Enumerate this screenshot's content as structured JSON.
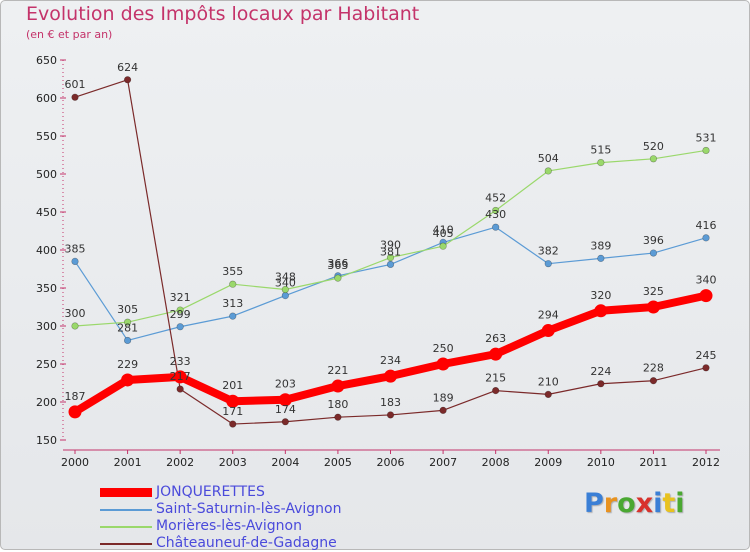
{
  "title": "Evolution des Impôts locaux par Habitant",
  "subtitle": "(en € et par an)",
  "brand": {
    "letters": [
      "P",
      "r",
      "o",
      "x",
      "i",
      "t",
      "i"
    ],
    "colors": [
      "#3a7fd6",
      "#e8921f",
      "#4aa832",
      "#d8322c",
      "#3a7fd6",
      "#e8c21f",
      "#4aa832"
    ]
  },
  "chart_data": {
    "type": "line",
    "title": "Evolution des Impôts locaux par Habitant",
    "subtitle": "(en € et par an)",
    "x": [
      "2000",
      "2001",
      "2002",
      "2003",
      "2004",
      "2005",
      "2006",
      "2007",
      "2008",
      "2009",
      "2010",
      "2011",
      "2012"
    ],
    "ylim": [
      150,
      650
    ],
    "yticks": [
      150,
      200,
      250,
      300,
      350,
      400,
      450,
      500,
      550,
      600,
      650
    ],
    "grid": false,
    "legend_position": "bottom-left",
    "series": [
      {
        "name": "Saint-Saturnin-lès-Avignon",
        "color": "#5b9bd5",
        "values": [
          385,
          281,
          299,
          313,
          340,
          366,
          381,
          410,
          430,
          382,
          389,
          396,
          416
        ],
        "labels": [
          "385",
          "281",
          "299",
          "313",
          "340",
          "366",
          "381",
          "410",
          "430",
          "382",
          "389",
          "396",
          "416"
        ]
      },
      {
        "name": "Morières-lès-Avignon",
        "color": "#9ad86b",
        "values": [
          300,
          305,
          321,
          355,
          348,
          363,
          390,
          405,
          452,
          504,
          515,
          520,
          531
        ],
        "labels": [
          "300",
          "305",
          "321",
          "355",
          "348",
          "363",
          "390",
          "405",
          "452",
          "504",
          "515",
          "520",
          "531"
        ]
      },
      {
        "name": "Châteauneuf-de-Gadagne",
        "color": "#7b2a2a",
        "values": [
          601,
          624,
          217,
          171,
          174,
          180,
          183,
          189,
          215,
          210,
          224,
          228,
          245
        ],
        "labels": [
          "601",
          "624",
          "217",
          "171",
          "174",
          "180",
          "183",
          "189",
          "215",
          "210",
          "224",
          "228",
          "245"
        ]
      },
      {
        "name": "JONQUERETTES",
        "color": "#ff0000",
        "values": [
          187,
          229,
          233,
          201,
          203,
          221,
          234,
          250,
          263,
          294,
          320,
          325,
          340
        ],
        "labels": [
          "187",
          "229",
          "233",
          "201",
          "203",
          "221",
          "234",
          "250",
          "263",
          "294",
          "320",
          "325",
          "340"
        ]
      }
    ],
    "legend": [
      "JONQUERETTES",
      "Saint-Saturnin-lès-Avignon",
      "Morières-lès-Avignon",
      "Châteauneuf-de-Gadagne"
    ]
  }
}
